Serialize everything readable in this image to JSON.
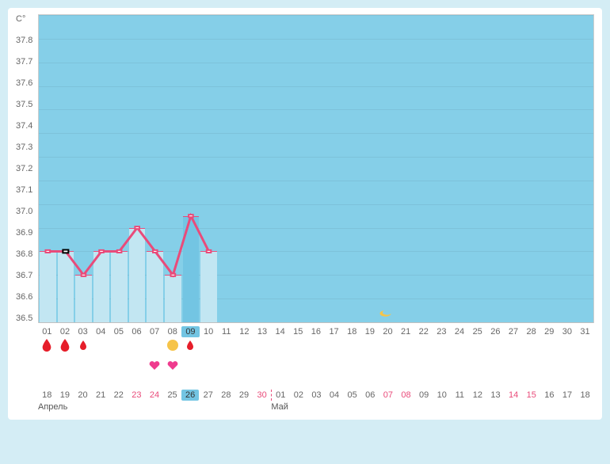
{
  "chart": {
    "y_label": "C°",
    "y_ticks": [
      "C°",
      "37.8",
      "37.7",
      "37.6",
      "37.5",
      "37.4",
      "37.3",
      "37.2",
      "37.1",
      "37.0",
      "36.9",
      "36.8",
      "36.7",
      "36.6",
      "36.5"
    ],
    "y_min": 36.5,
    "y_max": 37.8,
    "y_step": 0.1,
    "fill_top_value": 37.8,
    "bg_color": "#85cfe8",
    "bar_fill": "#c2e6f2",
    "border_color": "#cccccc",
    "line_color": "#e94b7a",
    "marker_fill": "#ffffff",
    "marker_stroke": "#e94b7a",
    "marker_size": 5,
    "line_width": 1.5,
    "x_days": [
      "01",
      "02",
      "03",
      "04",
      "05",
      "06",
      "07",
      "08",
      "09",
      "10",
      "11",
      "12",
      "13",
      "14",
      "15",
      "16",
      "17",
      "18",
      "19",
      "20",
      "21",
      "22",
      "23",
      "24",
      "25",
      "26",
      "27",
      "28",
      "29",
      "30",
      "31"
    ],
    "x_highlight_index": 8,
    "series": [
      {
        "day": "01",
        "v": 36.8,
        "sq": false
      },
      {
        "day": "02",
        "v": 36.8,
        "sq": true
      },
      {
        "day": "03",
        "v": 36.7,
        "sq": false
      },
      {
        "day": "04",
        "v": 36.8,
        "sq": false
      },
      {
        "day": "05",
        "v": 36.8,
        "sq": false
      },
      {
        "day": "06",
        "v": 36.9,
        "sq": false
      },
      {
        "day": "07",
        "v": 36.8,
        "sq": false
      },
      {
        "day": "08",
        "v": 36.7,
        "sq": false
      },
      {
        "day": "09",
        "v": 36.95,
        "sq": false
      },
      {
        "day": "10",
        "v": 36.8,
        "sq": false
      }
    ],
    "bars_count": 10,
    "moon_index": 19
  },
  "markers": {
    "row1": [
      {
        "i": 0,
        "t": "drop",
        "size": "l"
      },
      {
        "i": 1,
        "t": "drop",
        "size": "l"
      },
      {
        "i": 2,
        "t": "drop",
        "size": "s"
      },
      {
        "i": 7,
        "t": "sun"
      },
      {
        "i": 8,
        "t": "drop",
        "size": "s"
      }
    ],
    "row2": [
      {
        "i": 6,
        "t": "heart"
      },
      {
        "i": 7,
        "t": "heart"
      }
    ],
    "colors": {
      "drop": "#e61e2a",
      "sun": "#f6c449",
      "heart": "#ef3b8e",
      "moon": "#f6c449"
    }
  },
  "calendar": {
    "days": [
      {
        "n": "18"
      },
      {
        "n": "19"
      },
      {
        "n": "20"
      },
      {
        "n": "21"
      },
      {
        "n": "22"
      },
      {
        "n": "23",
        "red": true
      },
      {
        "n": "24",
        "red": true
      },
      {
        "n": "25"
      },
      {
        "n": "26",
        "hl": true
      },
      {
        "n": "27"
      },
      {
        "n": "28"
      },
      {
        "n": "29"
      },
      {
        "n": "30",
        "red": true
      },
      {
        "n": "01",
        "sep": true
      },
      {
        "n": "02"
      },
      {
        "n": "03"
      },
      {
        "n": "04"
      },
      {
        "n": "05"
      },
      {
        "n": "06"
      },
      {
        "n": "07",
        "red": true
      },
      {
        "n": "08",
        "red": true
      },
      {
        "n": "09"
      },
      {
        "n": "10"
      },
      {
        "n": "11"
      },
      {
        "n": "12"
      },
      {
        "n": "13"
      },
      {
        "n": "14",
        "red": true
      },
      {
        "n": "15",
        "red": true
      },
      {
        "n": "16"
      },
      {
        "n": "17"
      },
      {
        "n": "18"
      }
    ],
    "months": {
      "left": "Апрель",
      "right": "Май",
      "split_index": 13
    }
  }
}
